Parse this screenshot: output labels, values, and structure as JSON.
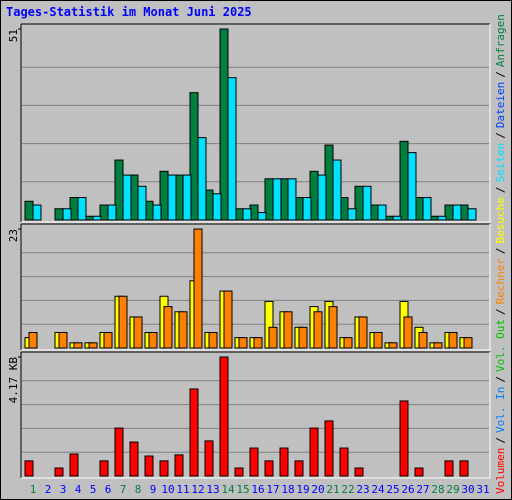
{
  "chart_data": [
    {
      "type": "bar",
      "title": "Tages-Statistik im Monat Juni 2025",
      "categories": [
        "1",
        "2",
        "3",
        "4",
        "5",
        "6",
        "7",
        "8",
        "9",
        "10",
        "11",
        "12",
        "13",
        "14",
        "15",
        "16",
        "17",
        "18",
        "19",
        "20",
        "21",
        "22",
        "23",
        "24",
        "25",
        "26",
        "27",
        "28",
        "29",
        "30",
        "31"
      ],
      "highlight": [
        0,
        6,
        7,
        13,
        14,
        20,
        21,
        27,
        28
      ],
      "highlight_color": "#008040",
      "ylim": [
        0,
        51
      ],
      "yticks": [
        51
      ],
      "series": [
        {
          "name": "Anfragen",
          "color": "#008040",
          "values": [
            5,
            0,
            3,
            6,
            1,
            4,
            16,
            12,
            5,
            13,
            12,
            34,
            8,
            51,
            3,
            4,
            11,
            11,
            6,
            13,
            20,
            6,
            9,
            4,
            1,
            21,
            6,
            1,
            4,
            4,
            0
          ]
        },
        {
          "name": "Dateien",
          "color": "#0040ff",
          "values": [
            null,
            null,
            null,
            null,
            null,
            null,
            null,
            null,
            null,
            null,
            null,
            null,
            null,
            null,
            null,
            null,
            null,
            null,
            null,
            null,
            null,
            null,
            null,
            null,
            null,
            null,
            null,
            null,
            null,
            null,
            null
          ]
        },
        {
          "name": "Seiten",
          "color": "#00e0ff",
          "values": [
            4,
            0,
            3,
            6,
            1,
            4,
            12,
            9,
            4,
            12,
            12,
            22,
            7,
            38,
            3,
            2,
            11,
            11,
            6,
            12,
            16,
            3,
            9,
            4,
            1,
            18,
            6,
            1,
            4,
            3,
            0
          ]
        }
      ]
    },
    {
      "type": "bar",
      "ylim": [
        0,
        23
      ],
      "yticks": [
        23
      ],
      "series": [
        {
          "name": "Besuche",
          "color": "#ffff00",
          "values": [
            2,
            0,
            3,
            1,
            1,
            3,
            10,
            6,
            3,
            10,
            7,
            13,
            3,
            11,
            2,
            2,
            9,
            7,
            4,
            8,
            9,
            2,
            6,
            3,
            1,
            9,
            4,
            1,
            3,
            2,
            0
          ]
        },
        {
          "name": "Rechner",
          "color": "#ff8000",
          "values": [
            3,
            0,
            3,
            1,
            1,
            3,
            10,
            6,
            3,
            8,
            7,
            23,
            3,
            11,
            2,
            2,
            4,
            7,
            4,
            7,
            8,
            2,
            6,
            3,
            1,
            6,
            3,
            1,
            3,
            2,
            0
          ]
        }
      ]
    },
    {
      "type": "bar",
      "ylim": [
        0,
        4.17
      ],
      "yticks": [
        {
          "value": 4.17,
          "label": "4.17 KB"
        }
      ],
      "series": [
        {
          "name": "Volumen",
          "color": "#ff0000",
          "values": [
            0.53,
            0,
            0.28,
            0.77,
            0,
            0.53,
            1.68,
            1.19,
            0.7,
            0.53,
            0.74,
            3.05,
            1.23,
            4.17,
            0.28,
            0.98,
            0.53,
            0.98,
            0.53,
            1.68,
            1.93,
            0.98,
            0.28,
            0,
            0,
            2.63,
            0.28,
            0,
            0.53,
            0.53,
            0
          ]
        },
        {
          "name": "Vol. In",
          "color": "#0080ff",
          "values": [
            null,
            null,
            null,
            null,
            null,
            null,
            null,
            null,
            null,
            null,
            null,
            null,
            null,
            null,
            null,
            null,
            null,
            null,
            null,
            null,
            null,
            null,
            null,
            null,
            null,
            null,
            null,
            null,
            null,
            null,
            null
          ]
        },
        {
          "name": "Vol. Out",
          "color": "#00c000",
          "values": [
            null,
            null,
            null,
            null,
            null,
            null,
            null,
            null,
            null,
            null,
            null,
            null,
            null,
            null,
            null,
            null,
            null,
            null,
            null,
            null,
            null,
            null,
            null,
            null,
            null,
            null,
            null,
            null,
            null,
            null,
            null
          ]
        }
      ]
    }
  ],
  "legend_separator": "/"
}
